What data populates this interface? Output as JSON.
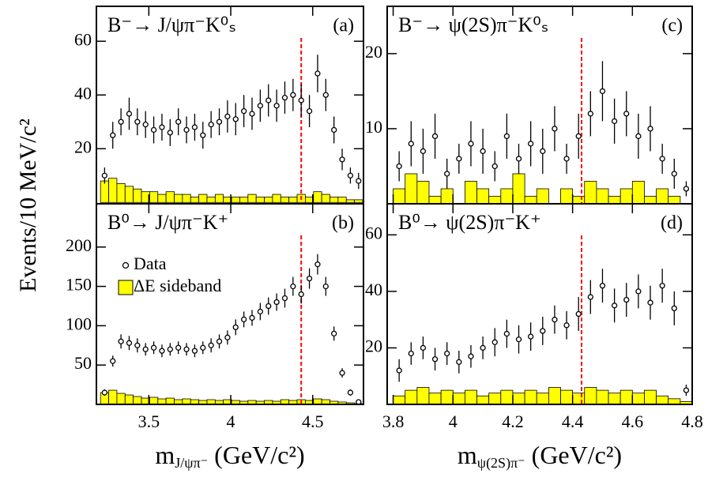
{
  "y_axis_label": "Events/10 MeV/c²",
  "chart_data": [
    {
      "type": "errorbar",
      "title": "B⁻→ J/ψπ⁻K⁰ₛ",
      "panel_label": "(a)",
      "xlim": [
        3.18,
        4.81
      ],
      "ylim": [
        -0.5,
        73
      ],
      "xticks": [
        3.5,
        4,
        4.5
      ],
      "yticks": [
        20,
        40,
        60
      ],
      "marker_x": 4.43,
      "series": [
        {
          "color": "#000000",
          "x": [
            3.23,
            3.28,
            3.33,
            3.38,
            3.43,
            3.48,
            3.53,
            3.58,
            3.63,
            3.68,
            3.73,
            3.78,
            3.83,
            3.88,
            3.93,
            3.98,
            4.03,
            4.08,
            4.13,
            4.18,
            4.23,
            4.28,
            4.33,
            4.38,
            4.43,
            4.48,
            4.53,
            4.58,
            4.63,
            4.68,
            4.73,
            4.78
          ],
          "values": [
            10,
            25,
            30,
            33,
            30,
            29,
            27,
            28,
            26,
            30,
            27,
            28,
            25,
            29,
            30,
            32,
            31,
            34,
            33,
            36,
            38,
            36,
            39,
            40,
            38,
            34,
            48,
            40,
            27,
            16,
            10,
            8
          ],
          "errors": [
            3,
            5,
            5,
            6,
            5,
            5,
            5,
            5,
            5,
            5,
            5,
            5,
            5,
            5,
            5,
            6,
            6,
            6,
            6,
            6,
            6,
            6,
            6,
            6,
            6,
            6,
            7,
            6,
            5,
            4,
            3,
            3
          ]
        },
        {
          "color": "#ffff00",
          "bins": [
            3.205,
            3.255,
            3.305,
            3.355,
            3.405,
            3.455,
            3.505,
            3.555,
            3.605,
            3.655,
            3.705,
            3.755,
            3.805,
            3.855,
            3.905,
            3.955,
            4.005,
            4.055,
            4.105,
            4.155,
            4.205,
            4.255,
            4.305,
            4.355,
            4.405,
            4.455,
            4.505,
            4.555,
            4.605,
            4.655,
            4.705,
            4.755,
            4.805
          ],
          "values": [
            8,
            9,
            7,
            6,
            5,
            4,
            4,
            3,
            4,
            3,
            3,
            2,
            3,
            2,
            3,
            2,
            2,
            2,
            3,
            2,
            2,
            3,
            2,
            2,
            3,
            2,
            4,
            3,
            2,
            2,
            1,
            1
          ]
        }
      ]
    },
    {
      "type": "errorbar",
      "title": "B⁰→ J/ψπ⁻K⁺",
      "panel_label": "(b)",
      "x_label": {
        "symbol": "m",
        "subscript": "J/ψπ⁻",
        "unit": " (GeV/c²)"
      },
      "xlim": [
        3.18,
        4.81
      ],
      "ylim": [
        0,
        255
      ],
      "xticks": [
        3.5,
        4,
        4.5
      ],
      "yticks": [
        50,
        100,
        150,
        200
      ],
      "marker_x": 4.43,
      "series": [
        {
          "name": "Data",
          "color": "#000000",
          "x": [
            3.23,
            3.28,
            3.33,
            3.38,
            3.43,
            3.48,
            3.53,
            3.58,
            3.63,
            3.68,
            3.73,
            3.78,
            3.83,
            3.88,
            3.93,
            3.98,
            4.03,
            4.08,
            4.13,
            4.18,
            4.23,
            4.28,
            4.33,
            4.38,
            4.43,
            4.48,
            4.53,
            4.58,
            4.63,
            4.68,
            4.73,
            4.78
          ],
          "values": [
            15,
            55,
            80,
            78,
            75,
            70,
            72,
            68,
            70,
            72,
            70,
            68,
            72,
            75,
            80,
            85,
            98,
            108,
            110,
            118,
            125,
            130,
            135,
            150,
            140,
            160,
            178,
            150,
            90,
            40,
            15,
            3
          ],
          "errors": [
            4,
            7,
            9,
            9,
            9,
            8,
            8,
            8,
            8,
            8,
            8,
            8,
            8,
            9,
            9,
            9,
            10,
            10,
            10,
            11,
            11,
            11,
            12,
            12,
            12,
            13,
            13,
            12,
            9,
            6,
            4,
            2
          ]
        },
        {
          "name": "ΔE sideband",
          "color": "#ffff00",
          "bins": [
            3.205,
            3.255,
            3.305,
            3.355,
            3.405,
            3.455,
            3.505,
            3.555,
            3.605,
            3.655,
            3.705,
            3.755,
            3.805,
            3.855,
            3.905,
            3.955,
            4.005,
            4.055,
            4.105,
            4.155,
            4.205,
            4.255,
            4.305,
            4.355,
            4.405,
            4.455,
            4.505,
            4.555,
            4.605,
            4.655,
            4.705,
            4.755,
            4.805
          ],
          "values": [
            15,
            18,
            14,
            12,
            10,
            8,
            9,
            7,
            8,
            6,
            7,
            6,
            5,
            6,
            5,
            6,
            5,
            4,
            5,
            4,
            5,
            4,
            6,
            5,
            6,
            5,
            7,
            6,
            4,
            3,
            2,
            1
          ]
        }
      ]
    },
    {
      "type": "errorbar",
      "title": "B⁻→ ψ(2S)π⁻K⁰ₛ",
      "panel_label": "(c)",
      "xlim": [
        3.78,
        4.8
      ],
      "ylim": [
        0,
        26.3
      ],
      "xticks": [
        3.8,
        4,
        4.2,
        4.4,
        4.6,
        4.8
      ],
      "yticks": [
        10,
        20
      ],
      "marker_x": 4.43,
      "series": [
        {
          "color": "#000000",
          "x": [
            3.82,
            3.86,
            3.9,
            3.94,
            3.98,
            4.02,
            4.06,
            4.1,
            4.14,
            4.18,
            4.22,
            4.26,
            4.3,
            4.34,
            4.38,
            4.42,
            4.46,
            4.5,
            4.54,
            4.58,
            4.62,
            4.66,
            4.7,
            4.74,
            4.78
          ],
          "values": [
            5,
            8,
            7,
            9,
            4,
            6,
            8,
            7,
            5,
            9,
            6,
            8,
            7,
            10,
            6,
            9,
            12,
            15,
            11,
            12,
            9,
            10,
            6,
            4,
            2
          ],
          "errors": [
            2,
            3,
            3,
            3,
            2,
            2,
            3,
            3,
            2,
            3,
            2,
            3,
            3,
            3,
            2,
            3,
            3,
            4,
            3,
            3,
            3,
            3,
            2,
            2,
            1
          ]
        },
        {
          "color": "#ffff00",
          "bins": [
            3.8,
            3.84,
            3.88,
            3.92,
            3.96,
            4.0,
            4.04,
            4.08,
            4.12,
            4.16,
            4.2,
            4.24,
            4.28,
            4.32,
            4.36,
            4.4,
            4.44,
            4.48,
            4.52,
            4.56,
            4.6,
            4.64,
            4.68,
            4.72,
            4.76,
            4.8
          ],
          "values": [
            2,
            4,
            3,
            1,
            2,
            0,
            3,
            2,
            1,
            2,
            4,
            1,
            2,
            0,
            2,
            1,
            3,
            2,
            1,
            2,
            3,
            1,
            2,
            1,
            0
          ]
        }
      ]
    },
    {
      "type": "errorbar",
      "title": "B⁰→ ψ(2S)π⁻K⁺",
      "panel_label": "(d)",
      "x_label": {
        "symbol": "m",
        "subscript": "ψ(2S)π⁻",
        "unit": " (GeV/c²)"
      },
      "xlim": [
        3.78,
        4.8
      ],
      "ylim": [
        0,
        71
      ],
      "xticks": [
        3.8,
        4,
        4.2,
        4.4,
        4.6,
        4.8
      ],
      "yticks": [
        20,
        40,
        60
      ],
      "marker_x": 4.43,
      "series": [
        {
          "color": "#000000",
          "x": [
            3.82,
            3.86,
            3.9,
            3.94,
            3.98,
            4.02,
            4.06,
            4.1,
            4.14,
            4.18,
            4.22,
            4.26,
            4.3,
            4.34,
            4.38,
            4.42,
            4.46,
            4.5,
            4.54,
            4.58,
            4.62,
            4.66,
            4.7,
            4.74,
            4.78
          ],
          "values": [
            12,
            18,
            20,
            16,
            18,
            15,
            17,
            20,
            22,
            25,
            23,
            24,
            26,
            30,
            28,
            32,
            38,
            42,
            35,
            37,
            40,
            36,
            42,
            34,
            5
          ],
          "errors": [
            4,
            4,
            4,
            4,
            4,
            4,
            4,
            4,
            5,
            5,
            5,
            5,
            5,
            5,
            5,
            6,
            6,
            6,
            6,
            6,
            6,
            6,
            6,
            6,
            2
          ]
        },
        {
          "color": "#ffff00",
          "bins": [
            3.8,
            3.84,
            3.88,
            3.92,
            3.96,
            4.0,
            4.04,
            4.08,
            4.12,
            4.16,
            4.2,
            4.24,
            4.28,
            4.32,
            4.36,
            4.4,
            4.44,
            4.48,
            4.52,
            4.56,
            4.6,
            4.64,
            4.68,
            4.72,
            4.76,
            4.8
          ],
          "values": [
            3,
            5,
            6,
            4,
            5,
            4,
            5,
            3,
            4,
            5,
            4,
            5,
            4,
            6,
            5,
            4,
            6,
            5,
            4,
            5,
            4,
            5,
            3,
            2,
            1
          ]
        }
      ]
    }
  ]
}
